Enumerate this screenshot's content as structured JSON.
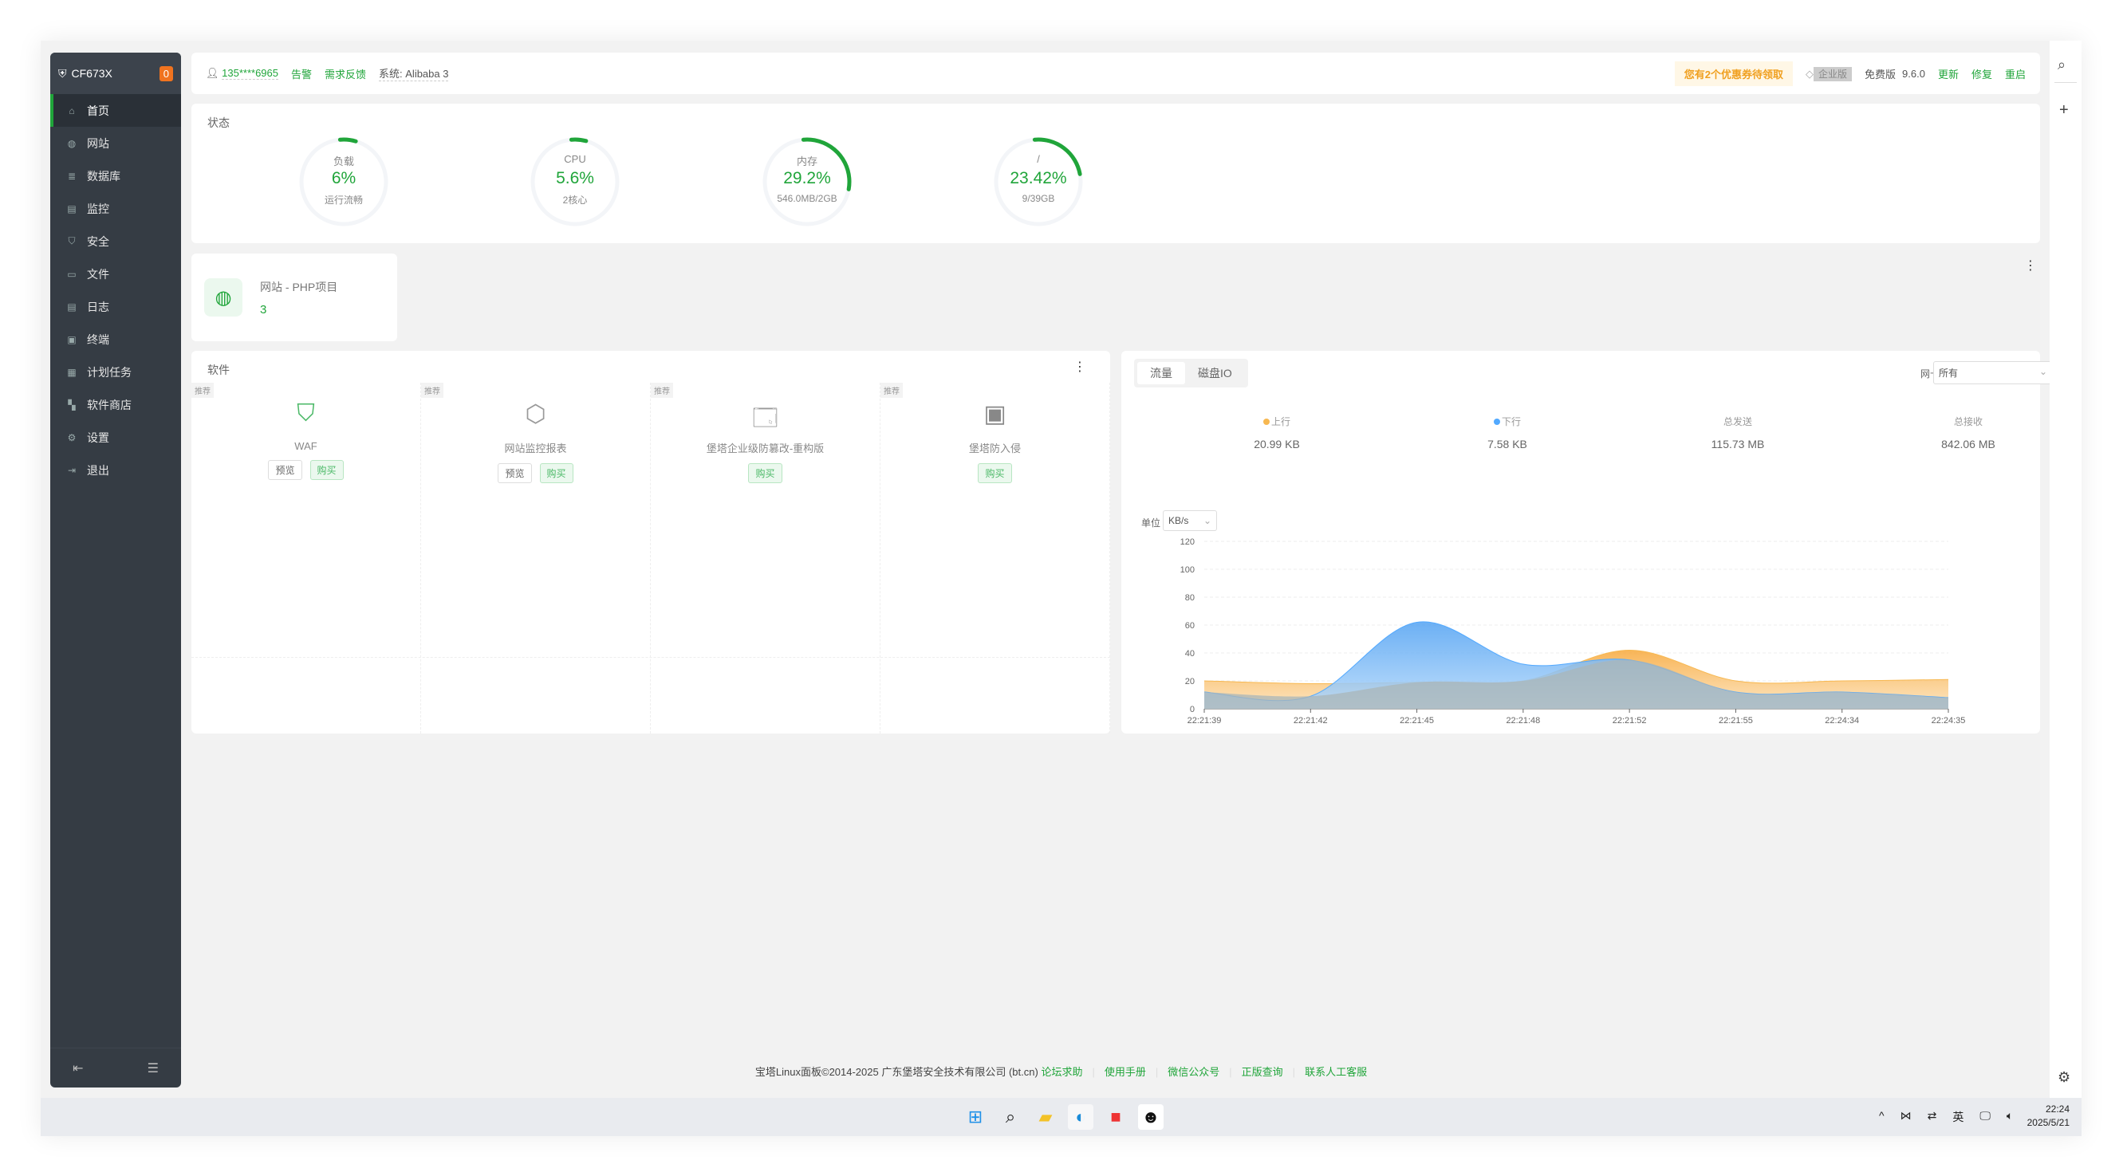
{
  "sidebar": {
    "title": "CF673X",
    "badge": "0",
    "items": [
      {
        "label": "首页",
        "icon": "home-icon",
        "active": true
      },
      {
        "label": "网站",
        "icon": "globe-icon"
      },
      {
        "label": "数据库",
        "icon": "database-icon"
      },
      {
        "label": "监控",
        "icon": "monitor-icon"
      },
      {
        "label": "安全",
        "icon": "shield-icon"
      },
      {
        "label": "文件",
        "icon": "folder-icon"
      },
      {
        "label": "日志",
        "icon": "log-icon"
      },
      {
        "label": "终端",
        "icon": "terminal-icon"
      },
      {
        "label": "计划任务",
        "icon": "calendar-icon"
      },
      {
        "label": "软件商店",
        "icon": "grid-icon"
      },
      {
        "label": "设置",
        "icon": "gear-icon"
      },
      {
        "label": "退出",
        "icon": "logout-icon"
      }
    ]
  },
  "topbar": {
    "user": "135****6965",
    "alert": "告警",
    "feedback": "需求反馈",
    "system": "系统: Alibaba 3",
    "coupon": "您有2个优惠券待领取",
    "enterprise": "企业版",
    "edition": "免费版",
    "version": "9.6.0",
    "update": "更新",
    "repair": "修复",
    "restart": "重启"
  },
  "status": {
    "title": "状态",
    "gauges": [
      {
        "label": "负载",
        "value": "6%",
        "sub": "运行流畅",
        "fraction": 0.06
      },
      {
        "label": "CPU",
        "value": "5.6%",
        "sub": "2核心",
        "fraction": 0.056
      },
      {
        "label": "内存",
        "value": "29.2%",
        "sub": "546.0MB/2GB",
        "fraction": 0.292
      },
      {
        "label": "/",
        "value": "23.42%",
        "sub": "9/39GB",
        "fraction": 0.2342
      }
    ]
  },
  "site_card": {
    "label": "网站 - PHP项目",
    "count": "3"
  },
  "software": {
    "title": "软件",
    "tag": "推荐",
    "preview": "预览",
    "buy": "购买",
    "items": [
      {
        "name": "WAF",
        "preview": true
      },
      {
        "name": "网站监控报表",
        "preview": true
      },
      {
        "name": "堡塔企业级防篡改-重构版",
        "preview": false
      },
      {
        "name": "堡塔防入侵",
        "preview": false
      }
    ]
  },
  "traffic": {
    "tabs": [
      "流量",
      "磁盘IO"
    ],
    "nic_label": "网卡",
    "nic_value": "所有",
    "unit_label": "单位",
    "unit_value": "KB/s",
    "stats": [
      {
        "label": "上行",
        "value": "20.99 KB",
        "color": "#f7b851"
      },
      {
        "label": "下行",
        "value": "7.58 KB",
        "color": "#52a9ff"
      },
      {
        "label": "总发送",
        "value": "115.73 MB"
      },
      {
        "label": "总接收",
        "value": "842.06 MB"
      }
    ]
  },
  "chart_data": {
    "type": "area",
    "x": [
      "22:21:39",
      "22:21:42",
      "22:21:45",
      "22:21:48",
      "22:21:52",
      "22:21:55",
      "22:24:34",
      "22:24:35"
    ],
    "series": [
      {
        "name": "上行",
        "values": [
          20,
          18,
          19,
          20,
          42,
          20,
          20,
          21
        ],
        "color": "#f7b851"
      },
      {
        "name": "下行",
        "values": [
          12,
          9,
          62,
          32,
          35,
          12,
          12,
          8
        ],
        "color": "#52a9ff"
      }
    ],
    "ylim": [
      0,
      120
    ],
    "yticks": [
      "0",
      "20",
      "40",
      "60",
      "80",
      "100",
      "120"
    ],
    "grid": true
  },
  "footer": {
    "copyright": "宝塔Linux面板©2014-2025 广东堡塔安全技术有限公司 (bt.cn)",
    "links": [
      "论坛求助",
      "使用手册",
      "微信公众号",
      "正版查询",
      "联系人工客服"
    ]
  },
  "taskbar": {
    "time": "22:24",
    "date": "2025/5/21",
    "ime": "英"
  }
}
